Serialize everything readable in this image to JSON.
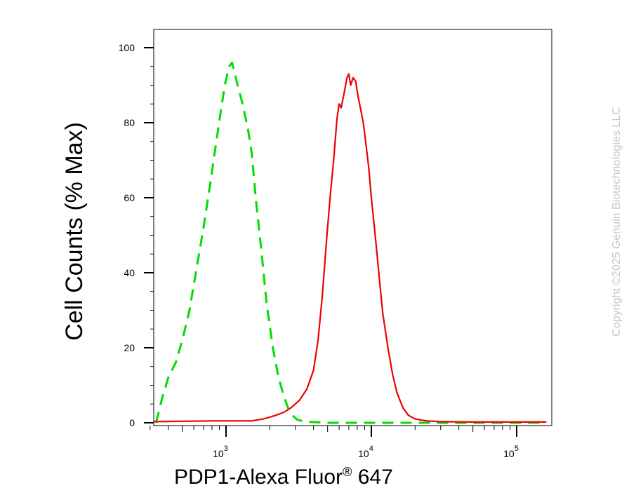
{
  "chart_data": {
    "type": "line",
    "xscale": "log",
    "xlim": [
      300,
      160000
    ],
    "ylim": [
      0,
      105
    ],
    "ylabel": "Cell Counts (% Max)",
    "xlabel_main": "PDP1-Alexa Fluor",
    "xlabel_reg": "®",
    "xlabel_tail": " 647",
    "x_ticks": [
      {
        "base": "10",
        "exp": "3",
        "value": 1000
      },
      {
        "base": "10",
        "exp": "4",
        "value": 10000
      },
      {
        "base": "10",
        "exp": "5",
        "value": 100000
      }
    ],
    "y_ticks": [
      0,
      20,
      40,
      60,
      80,
      100
    ],
    "watermark": "Copyright ©2025 Genuin Biotechnologies LLC",
    "series": [
      {
        "color": "#00dd00",
        "style": "dashed",
        "x": [
          330,
          360,
          400,
          450,
          500,
          560,
          620,
          700,
          780,
          850,
          920,
          980,
          1050,
          1100,
          1150,
          1200,
          1280,
          1350,
          1420,
          1500,
          1600,
          1750,
          1900,
          2100,
          2300,
          2500,
          2700,
          2900,
          3100,
          3500,
          5000,
          10000,
          50000,
          160000
        ],
        "y": [
          0,
          6,
          12,
          16,
          22,
          30,
          40,
          52,
          64,
          74,
          83,
          90,
          95,
          96,
          93,
          90,
          86,
          82,
          78,
          72,
          60,
          46,
          32,
          20,
          12,
          7,
          3.5,
          1.8,
          0.8,
          0.3,
          0,
          0,
          0,
          0
        ]
      },
      {
        "color": "#ee0000",
        "style": "solid",
        "x": [
          300,
          800,
          1500,
          1800,
          2000,
          2200,
          2500,
          2800,
          3200,
          3600,
          4000,
          4300,
          4600,
          4900,
          5200,
          5500,
          5800,
          6000,
          6200,
          6500,
          6800,
          7000,
          7200,
          7500,
          7800,
          8100,
          8400,
          8800,
          9200,
          9600,
          10000,
          10500,
          11000,
          11500,
          12000,
          13000,
          14000,
          15000,
          16500,
          18000,
          20000,
          24000,
          30000,
          50000,
          160000
        ],
        "y": [
          0.3,
          0.5,
          0.5,
          1,
          1.5,
          2,
          2.8,
          4,
          6,
          9,
          14,
          22,
          34,
          48,
          60,
          70,
          81,
          85,
          84,
          88,
          92,
          93,
          90,
          92,
          91,
          87,
          84,
          80,
          74,
          68,
          60,
          52,
          44,
          36,
          29,
          20,
          13,
          8,
          4,
          2,
          1,
          0.5,
          0.3,
          0.2,
          0.2
        ]
      }
    ]
  }
}
